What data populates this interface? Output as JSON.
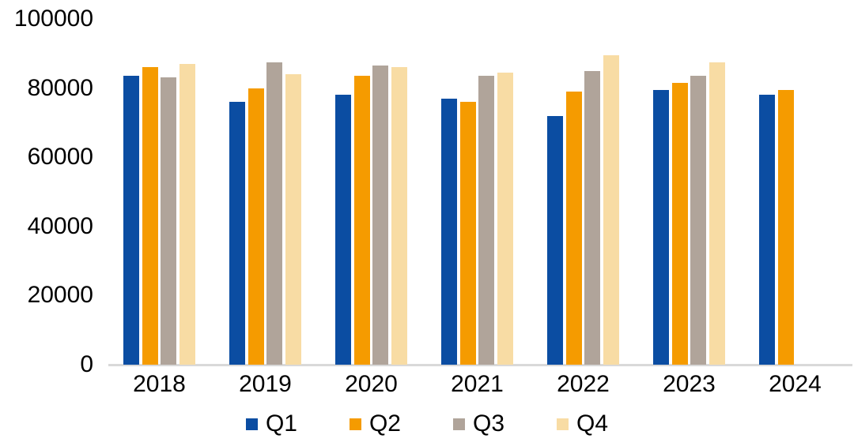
{
  "chart_data": {
    "type": "bar",
    "title": "",
    "xlabel": "",
    "ylabel": "",
    "categories": [
      "2018",
      "2019",
      "2020",
      "2021",
      "2022",
      "2023",
      "2024"
    ],
    "series": [
      {
        "name": "Q1",
        "color": "#0b4da2",
        "values": [
          83500,
          76000,
          78000,
          77000,
          72000,
          79500,
          78000
        ]
      },
      {
        "name": "Q2",
        "color": "#f59b00",
        "values": [
          86000,
          80000,
          83500,
          76000,
          79000,
          81500,
          79500
        ]
      },
      {
        "name": "Q3",
        "color": "#b0a49a",
        "values": [
          83000,
          87500,
          86500,
          83500,
          85000,
          83500,
          null
        ]
      },
      {
        "name": "Q4",
        "color": "#f8dca4",
        "values": [
          87000,
          84000,
          86000,
          84500,
          89500,
          87500,
          null
        ]
      }
    ],
    "ylim": [
      0,
      100000
    ],
    "y_ticks": [
      0,
      20000,
      40000,
      60000,
      80000,
      100000
    ],
    "y_tick_labels": [
      "0",
      "20000",
      "40000",
      "60000",
      "80000",
      "100000"
    ],
    "grid": false,
    "legend_position": "bottom",
    "legend_entries": [
      "Q1",
      "Q2",
      "Q3",
      "Q4"
    ],
    "axis_line_color": "#d9d9d9",
    "text_color": "#000000",
    "background_color": "#ffffff"
  }
}
